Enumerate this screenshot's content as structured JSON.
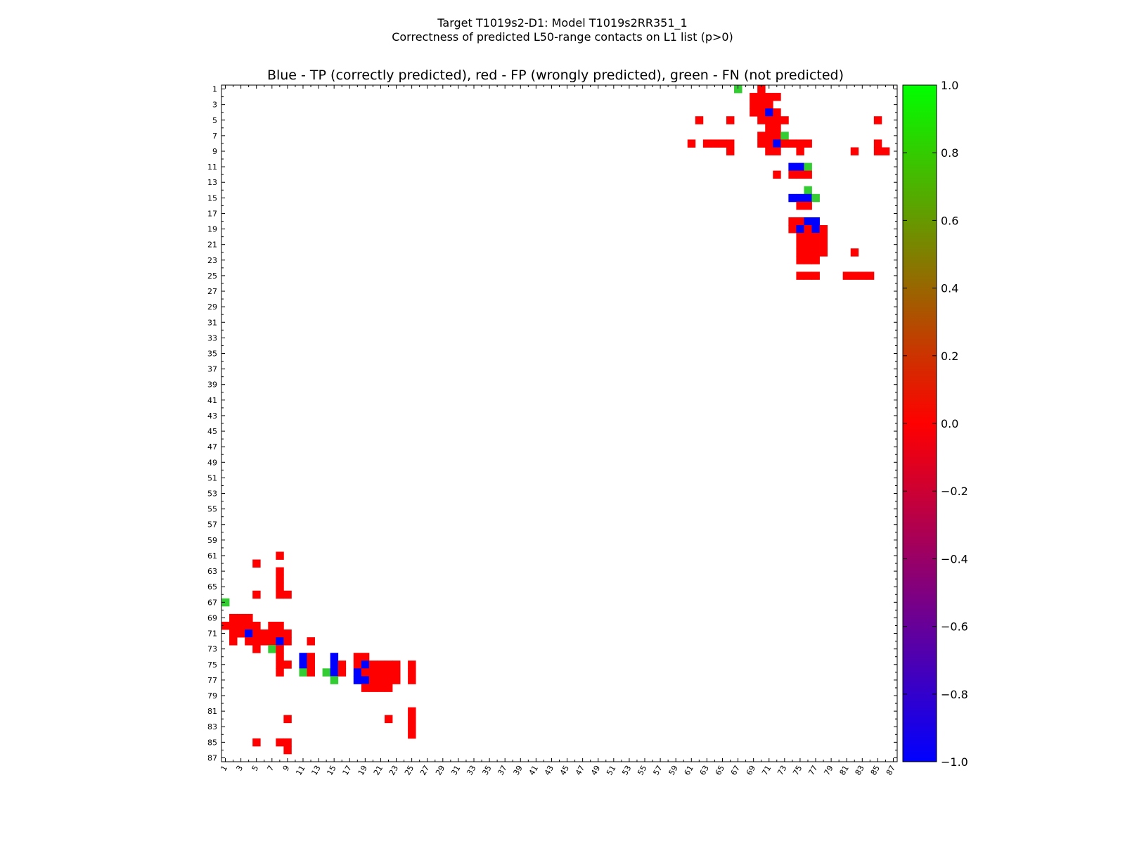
{
  "chart_data": {
    "type": "heatmap",
    "suptitle_line1": "Target T1019s2-D1: Model T1019s2RR351_1",
    "suptitle_line2": "Correctness of predicted L50-range contacts on L1 list (p>0)",
    "title": "Blue - TP (correctly predicted), red - FP (wrongly predicted), green - FN (not predicted)",
    "n_residues": 87,
    "x_ticks": [
      "1",
      "3",
      "5",
      "7",
      "9",
      "11",
      "13",
      "15",
      "17",
      "19",
      "21",
      "23",
      "25",
      "27",
      "29",
      "31",
      "33",
      "35",
      "37",
      "39",
      "41",
      "43",
      "45",
      "47",
      "49",
      "51",
      "53",
      "55",
      "57",
      "59",
      "61",
      "63",
      "65",
      "67",
      "69",
      "71",
      "73",
      "75",
      "77",
      "79",
      "81",
      "83",
      "85",
      "87"
    ],
    "y_ticks": [
      "1",
      "3",
      "5",
      "7",
      "9",
      "11",
      "13",
      "15",
      "17",
      "19",
      "21",
      "23",
      "25",
      "27",
      "29",
      "31",
      "33",
      "35",
      "37",
      "39",
      "41",
      "43",
      "45",
      "47",
      "49",
      "51",
      "53",
      "55",
      "57",
      "59",
      "61",
      "63",
      "65",
      "67",
      "69",
      "71",
      "73",
      "75",
      "77",
      "79",
      "81",
      "83",
      "85",
      "87"
    ],
    "colorbar": {
      "range": [
        -1.0,
        1.0
      ],
      "ticks": [
        "1.0",
        "0.8",
        "0.6",
        "0.4",
        "0.2",
        "0.0",
        "−0.2",
        "−0.4",
        "−0.6",
        "−0.8",
        "−1.0"
      ],
      "tick_values": [
        1.0,
        0.8,
        0.6,
        0.4,
        0.2,
        0.0,
        -0.2,
        -0.4,
        -0.6,
        -0.8,
        -1.0
      ],
      "colors": [
        "#0000ff",
        "#ff0000",
        "#00ff00"
      ]
    },
    "colors": {
      "TP": "#0000ff",
      "FP": "#ff0000",
      "FN": "#33cc33"
    },
    "upper_cells": [
      [
        1,
        67,
        "FN"
      ],
      [
        1,
        70,
        "FP"
      ],
      [
        2,
        69,
        "FP"
      ],
      [
        2,
        70,
        "FP"
      ],
      [
        2,
        71,
        "FP"
      ],
      [
        2,
        72,
        "FP"
      ],
      [
        3,
        69,
        "FP"
      ],
      [
        3,
        70,
        "FP"
      ],
      [
        3,
        71,
        "FP"
      ],
      [
        4,
        69,
        "FP"
      ],
      [
        4,
        70,
        "FP"
      ],
      [
        4,
        71,
        "TP"
      ],
      [
        4,
        72,
        "FP"
      ],
      [
        5,
        62,
        "FP"
      ],
      [
        5,
        66,
        "FP"
      ],
      [
        5,
        70,
        "FP"
      ],
      [
        5,
        71,
        "FP"
      ],
      [
        5,
        72,
        "FP"
      ],
      [
        5,
        73,
        "FP"
      ],
      [
        5,
        85,
        "FP"
      ],
      [
        6,
        71,
        "FP"
      ],
      [
        6,
        72,
        "FP"
      ],
      [
        7,
        70,
        "FP"
      ],
      [
        7,
        71,
        "FP"
      ],
      [
        7,
        72,
        "FP"
      ],
      [
        7,
        73,
        "FN"
      ],
      [
        8,
        61,
        "FP"
      ],
      [
        8,
        63,
        "FP"
      ],
      [
        8,
        64,
        "FP"
      ],
      [
        8,
        65,
        "FP"
      ],
      [
        8,
        66,
        "FP"
      ],
      [
        8,
        70,
        "FP"
      ],
      [
        8,
        71,
        "FP"
      ],
      [
        8,
        72,
        "TP"
      ],
      [
        8,
        73,
        "FP"
      ],
      [
        8,
        74,
        "FP"
      ],
      [
        8,
        75,
        "FP"
      ],
      [
        8,
        76,
        "FP"
      ],
      [
        8,
        85,
        "FP"
      ],
      [
        9,
        66,
        "FP"
      ],
      [
        9,
        71,
        "FP"
      ],
      [
        9,
        72,
        "FP"
      ],
      [
        9,
        75,
        "FP"
      ],
      [
        9,
        82,
        "FP"
      ],
      [
        9,
        85,
        "FP"
      ],
      [
        9,
        86,
        "FP"
      ],
      [
        11,
        74,
        "TP"
      ],
      [
        11,
        75,
        "TP"
      ],
      [
        11,
        76,
        "FN"
      ],
      [
        12,
        72,
        "FP"
      ],
      [
        12,
        74,
        "FP"
      ],
      [
        12,
        75,
        "FP"
      ],
      [
        12,
        76,
        "FP"
      ],
      [
        14,
        76,
        "FN"
      ],
      [
        15,
        74,
        "TP"
      ],
      [
        15,
        75,
        "TP"
      ],
      [
        15,
        76,
        "TP"
      ],
      [
        15,
        77,
        "FN"
      ],
      [
        16,
        75,
        "FP"
      ],
      [
        16,
        76,
        "FP"
      ],
      [
        18,
        74,
        "FP"
      ],
      [
        18,
        75,
        "FP"
      ],
      [
        18,
        76,
        "TP"
      ],
      [
        18,
        77,
        "TP"
      ],
      [
        19,
        74,
        "FP"
      ],
      [
        19,
        75,
        "TP"
      ],
      [
        19,
        76,
        "FP"
      ],
      [
        19,
        77,
        "TP"
      ],
      [
        19,
        78,
        "FP"
      ],
      [
        20,
        75,
        "FP"
      ],
      [
        20,
        76,
        "FP"
      ],
      [
        20,
        77,
        "FP"
      ],
      [
        20,
        78,
        "FP"
      ],
      [
        21,
        75,
        "FP"
      ],
      [
        21,
        76,
        "FP"
      ],
      [
        21,
        77,
        "FP"
      ],
      [
        21,
        78,
        "FP"
      ],
      [
        22,
        75,
        "FP"
      ],
      [
        22,
        76,
        "FP"
      ],
      [
        22,
        77,
        "FP"
      ],
      [
        22,
        78,
        "FP"
      ],
      [
        22,
        82,
        "FP"
      ],
      [
        23,
        75,
        "FP"
      ],
      [
        23,
        76,
        "FP"
      ],
      [
        23,
        77,
        "FP"
      ],
      [
        25,
        75,
        "FP"
      ],
      [
        25,
        76,
        "FP"
      ],
      [
        25,
        77,
        "FP"
      ],
      [
        25,
        81,
        "FP"
      ],
      [
        25,
        82,
        "FP"
      ],
      [
        25,
        83,
        "FP"
      ],
      [
        25,
        84,
        "FP"
      ]
    ]
  }
}
